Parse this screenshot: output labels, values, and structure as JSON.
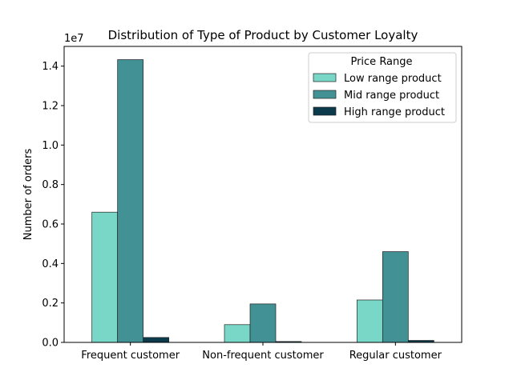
{
  "chart_data": {
    "type": "bar",
    "title": "Distribution of Type of Product by Customer Loyalty",
    "xlabel": "",
    "ylabel": "Number of orders",
    "y_scale_label": "1e7",
    "ylim": [
      0,
      15000000
    ],
    "yticks": [
      0,
      2000000,
      4000000,
      6000000,
      8000000,
      10000000,
      12000000,
      14000000
    ],
    "ytick_labels": [
      "0.0",
      "0.2",
      "0.4",
      "0.6",
      "0.8",
      "1.0",
      "1.2",
      "1.4"
    ],
    "categories": [
      "Frequent customer",
      "Non-frequent customer",
      "Regular customer"
    ],
    "series": [
      {
        "name": "Low range product",
        "color": "#79d7c7",
        "values": [
          6600000,
          900000,
          2150000
        ]
      },
      {
        "name": "Mid range product",
        "color": "#429195",
        "values": [
          14330000,
          1950000,
          4600000
        ]
      },
      {
        "name": "High range product",
        "color": "#0b3a4d",
        "values": [
          250000,
          45000,
          100000
        ]
      }
    ],
    "legend": {
      "title": "Price Range",
      "position": "top-right"
    },
    "grid": false
  }
}
